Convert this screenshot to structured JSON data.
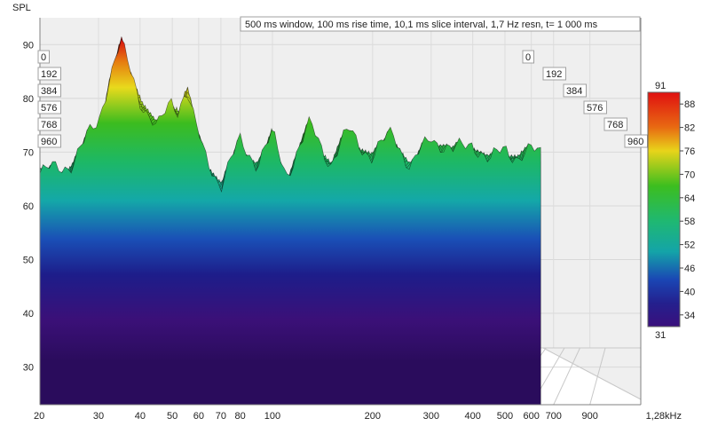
{
  "chart_data": {
    "type": "waterfall-3d",
    "title": "500 ms window, 100 ms rise time, 10,1 ms slice interval, 1,7 Hz resn, t= 1 000 ms",
    "ylabel": "SPL",
    "y_ticks": [
      "30",
      "40",
      "50",
      "60",
      "70",
      "80",
      "90"
    ],
    "ylim": [
      23,
      95
    ],
    "x_ticks": [
      "20",
      "30",
      "40",
      "50",
      "60",
      "70",
      "80",
      "100",
      "200",
      "300",
      "400",
      "500",
      "600",
      "700",
      "900",
      "1,28kHz"
    ],
    "x_tick_values": [
      20,
      30,
      40,
      50,
      60,
      70,
      80,
      100,
      200,
      300,
      400,
      500,
      600,
      700,
      900,
      1280
    ],
    "xlim": [
      20,
      1280
    ],
    "x_scale": "log",
    "time_ticks": [
      "0",
      "192",
      "384",
      "576",
      "768",
      "960"
    ],
    "time_range_ms": [
      0,
      1000
    ],
    "colorbar": {
      "min": "31",
      "max": "91",
      "ticks": [
        "88",
        "82",
        "76",
        "70",
        "64",
        "58",
        "52",
        "46",
        "40",
        "34"
      ],
      "range": [
        31,
        91
      ]
    },
    "front_slice": {
      "freq": [
        20,
        25,
        30,
        32,
        34,
        35,
        36,
        38,
        40,
        45,
        50,
        52,
        55,
        58,
        62,
        70,
        80,
        90,
        100,
        110,
        130,
        150,
        170,
        200,
        230,
        260,
        300,
        350,
        400,
        450,
        500,
        550,
        600,
        640
      ],
      "spl": [
        66,
        68,
        76,
        83,
        88,
        90,
        88,
        84,
        80,
        74,
        80,
        78,
        82,
        76,
        70,
        64,
        72,
        68,
        73,
        66,
        75,
        68,
        74,
        69,
        74,
        67,
        73,
        70,
        72,
        68,
        71,
        69,
        70,
        70
      ]
    }
  }
}
